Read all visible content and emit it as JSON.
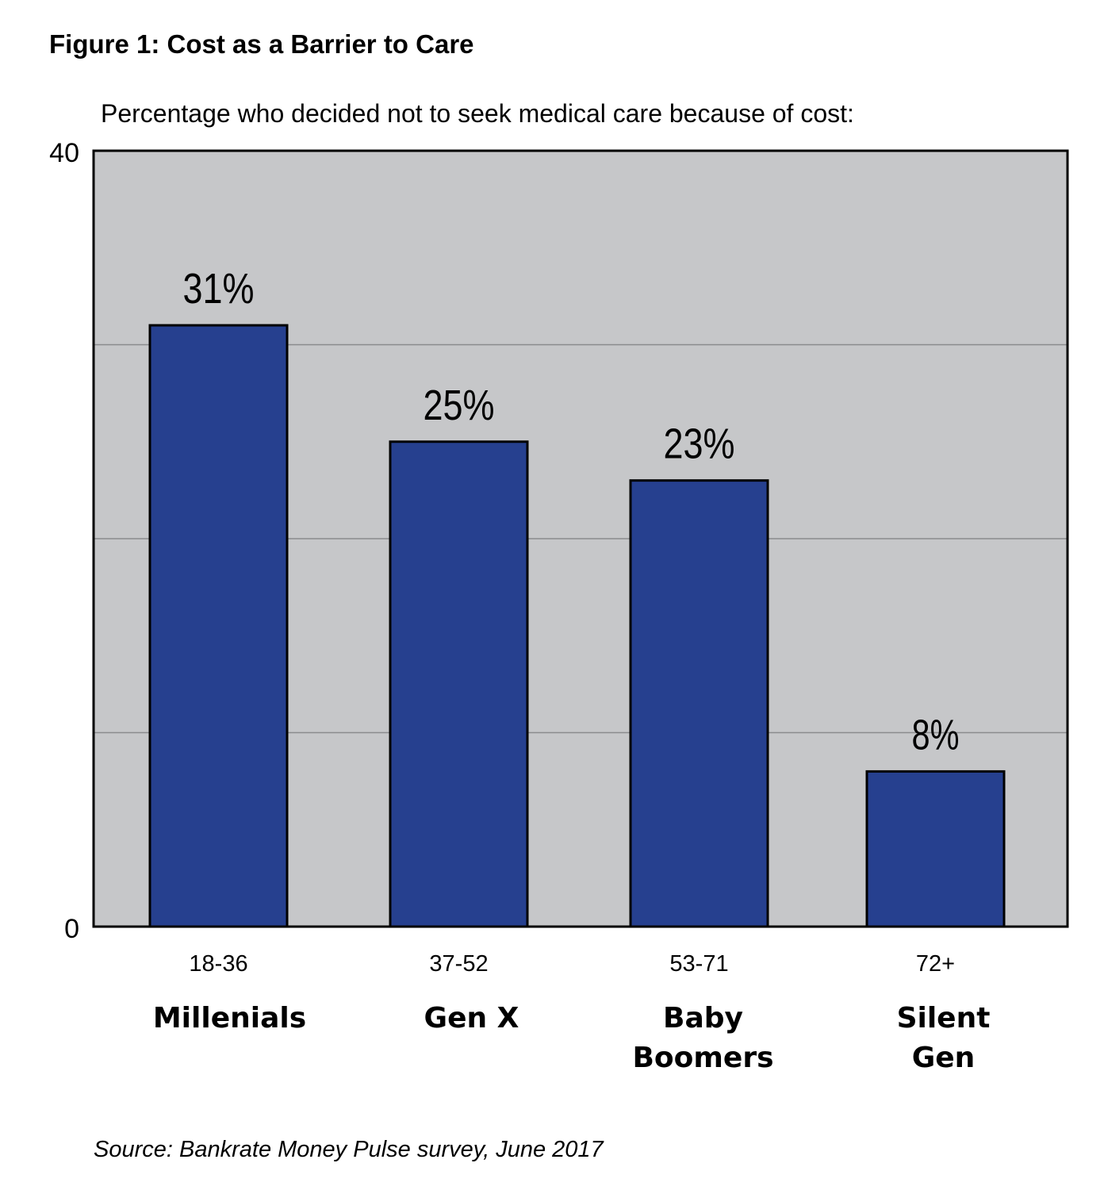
{
  "chart_data": {
    "type": "bar",
    "title": "Figure 1: Cost as a Barrier to Care",
    "subtitle": "Percentage who decided not to seek medical care because of cost:",
    "categories": [
      {
        "age": "18-36",
        "name": [
          "Millenials"
        ]
      },
      {
        "age": "37-52",
        "name": [
          "Gen X"
        ]
      },
      {
        "age": "53-71",
        "name": [
          "Baby",
          "Boomers"
        ]
      },
      {
        "age": "72+",
        "name": [
          "Silent",
          "Gen"
        ]
      }
    ],
    "values": [
      31,
      25,
      23,
      8
    ],
    "data_labels": [
      "31%",
      "25%",
      "23%",
      "8%"
    ],
    "ylim": [
      0,
      40
    ],
    "yticks": [
      "0",
      "40"
    ],
    "gridlines": [
      10,
      20,
      30
    ],
    "grid": true,
    "source": "Source: Bankrate Money Pulse survey, June 2017",
    "colors": {
      "bar": "#26408F",
      "plot_background": "#C6C7C9",
      "gridline": "#8A8B8D",
      "border": "#000000"
    }
  }
}
